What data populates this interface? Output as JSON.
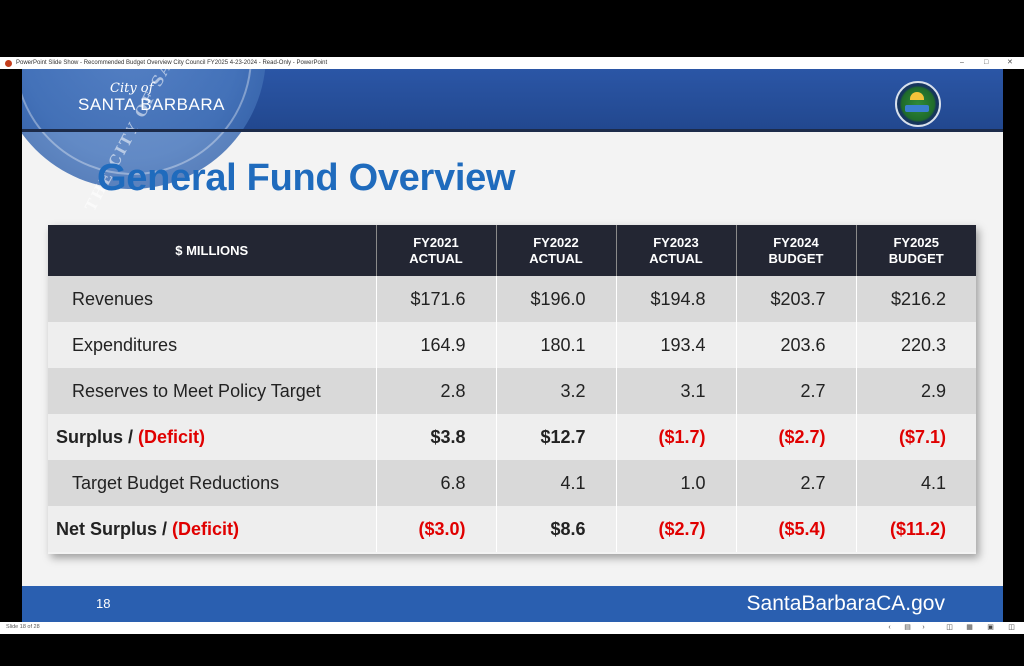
{
  "window": {
    "title": "PowerPoint Slide Show - Recommended Budget Overview City Council FY2025 4-23-2024 - Read-Only - PowerPoint",
    "controls": [
      "–",
      "□",
      "✕"
    ]
  },
  "slide": {
    "logo_city": "City of",
    "logo_name": "SANTA BARBARA",
    "seal_text": "THE CITY OF SANTA B",
    "title": "General Fund Overview",
    "table": {
      "header": [
        "$ MILLIONS",
        "FY2021 ACTUAL",
        "FY2022 ACTUAL",
        "FY2023 ACTUAL",
        "FY2024 BUDGET",
        "FY2025 BUDGET"
      ],
      "rows": [
        {
          "label": "Revenues",
          "values": [
            "$171.6",
            "$196.0",
            "$194.8",
            "$203.7",
            "$216.2"
          ]
        },
        {
          "label": "Expenditures",
          "values": [
            "164.9",
            "180.1",
            "193.4",
            "203.6",
            "220.3"
          ]
        },
        {
          "label": "Reserves to Meet Policy Target",
          "values": [
            "2.8",
            "3.2",
            "3.1",
            "2.7",
            "2.9"
          ]
        },
        {
          "label_main": "Surplus / ",
          "label_red": "(Deficit)",
          "values": [
            "$3.8",
            "$12.7",
            "($1.7)",
            "($2.7)",
            "($7.1)"
          ]
        },
        {
          "label": "Target Budget Reductions",
          "values": [
            "6.8",
            "4.1",
            "1.0",
            "2.7",
            "4.1"
          ]
        },
        {
          "label_main": "Net Surplus / ",
          "label_red": "(Deficit)",
          "values": [
            "($3.0)",
            "$8.6",
            "($2.7)",
            "($5.4)",
            "($11.2)"
          ]
        }
      ]
    },
    "footer": {
      "page_number": "18",
      "url": "SantaBarbaraCA.gov"
    }
  },
  "statusbar": {
    "slide_count": "Slide 18 of 28"
  },
  "colors": {
    "title_blue": "#1f6bbd",
    "header_bg": "#232633",
    "deficit_red": "#e00000",
    "footer_blue": "#2a5fb0"
  }
}
